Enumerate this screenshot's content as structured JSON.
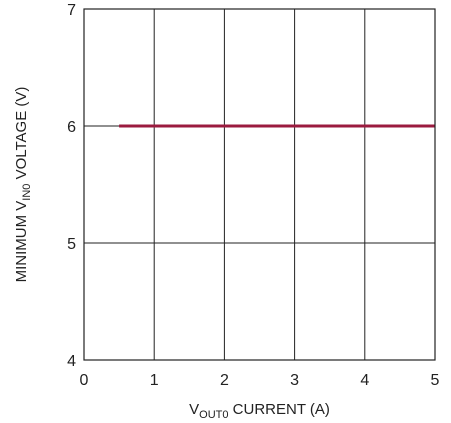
{
  "chart_data": {
    "type": "line",
    "title": "",
    "xlabel": {
      "main": "V",
      "sub": "OUT0",
      "rest": " CURRENT (A)"
    },
    "ylabel": {
      "pre": "MINIMUM V",
      "sub": "IN0",
      "rest": " VOLTAGE (V)"
    },
    "xlim": [
      0,
      5
    ],
    "ylim": [
      4,
      7
    ],
    "xticks": [
      "0",
      "1",
      "2",
      "3",
      "4",
      "5"
    ],
    "yticks": [
      "4",
      "5",
      "6",
      "7"
    ],
    "grid": true,
    "series": [
      {
        "color": "#9b1b3f",
        "x": [
          0.5,
          5
        ],
        "y": [
          6,
          6
        ]
      }
    ]
  }
}
